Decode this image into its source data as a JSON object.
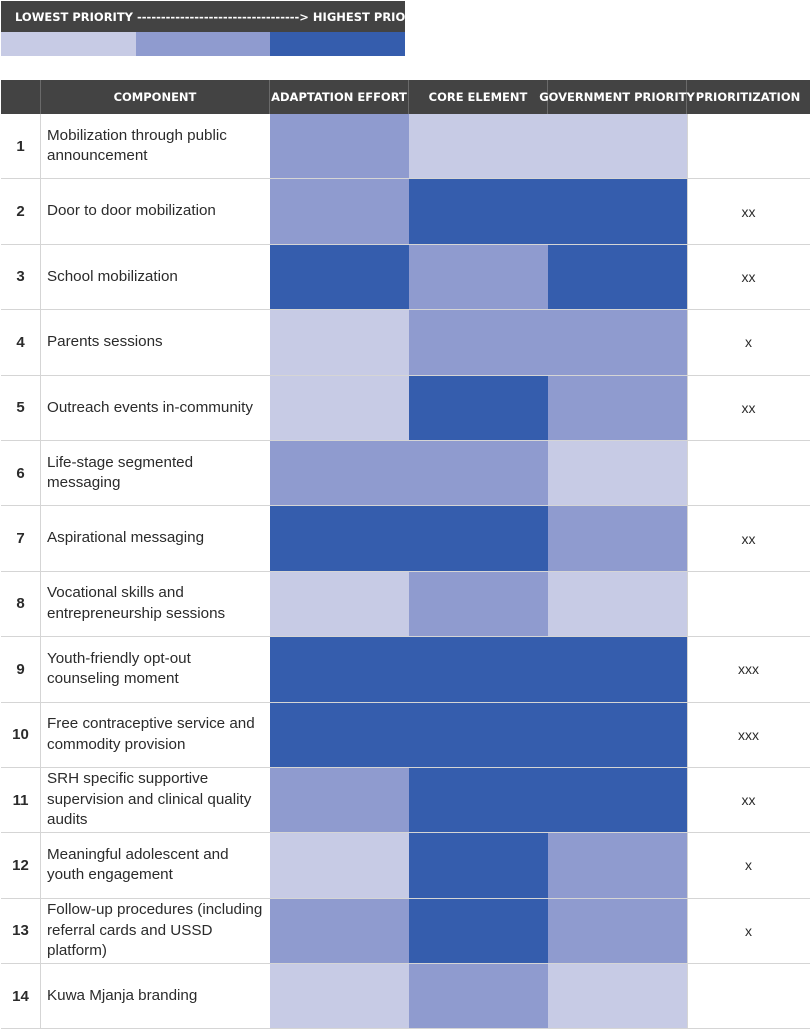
{
  "colors": {
    "low": "#c7cbe5",
    "medium": "#8f9bcf",
    "high": "#355dad",
    "header_bg": "#434343"
  },
  "legend": {
    "label": "LOWEST PRIORITY ----------------------------------> HIGHEST PRIORITY",
    "levels": [
      "low",
      "medium",
      "high"
    ]
  },
  "table": {
    "headers": {
      "component": "COMPONENT",
      "adaptation_effort": "ADAPTATION EFFORT",
      "core_element": "CORE ELEMENT",
      "government_priority": "GOVERNMENT PRIORITY",
      "prioritization": "PRIORITIZATION"
    },
    "rows": [
      {
        "num": "1",
        "component": "Mobilization through public announcement",
        "adaptation_effort": "medium",
        "core_element": "low",
        "government_priority": "low",
        "prioritization": ""
      },
      {
        "num": "2",
        "component": "Door to door mobilization",
        "adaptation_effort": "medium",
        "core_element": "high",
        "government_priority": "high",
        "prioritization": "xx"
      },
      {
        "num": "3",
        "component": "School mobilization",
        "adaptation_effort": "high",
        "core_element": "medium",
        "government_priority": "high",
        "prioritization": "xx"
      },
      {
        "num": "4",
        "component": "Parents sessions",
        "adaptation_effort": "low",
        "core_element": "medium",
        "government_priority": "medium",
        "prioritization": "x"
      },
      {
        "num": "5",
        "component": "Outreach events in-community",
        "adaptation_effort": "low",
        "core_element": "high",
        "government_priority": "medium",
        "prioritization": "xx"
      },
      {
        "num": "6",
        "component": "Life-stage segmented messaging",
        "adaptation_effort": "medium",
        "core_element": "medium",
        "government_priority": "low",
        "prioritization": ""
      },
      {
        "num": "7",
        "component": "Aspirational messaging",
        "adaptation_effort": "high",
        "core_element": "high",
        "government_priority": "medium",
        "prioritization": "xx"
      },
      {
        "num": "8",
        "component": "Vocational skills and entrepreneurship sessions",
        "adaptation_effort": "low",
        "core_element": "medium",
        "government_priority": "low",
        "prioritization": ""
      },
      {
        "num": "9",
        "component": "Youth-friendly opt-out counseling moment",
        "adaptation_effort": "high",
        "core_element": "high",
        "government_priority": "high",
        "prioritization": "xxx"
      },
      {
        "num": "10",
        "component": "Free contraceptive service and commodity provision",
        "adaptation_effort": "high",
        "core_element": "high",
        "government_priority": "high",
        "prioritization": "xxx"
      },
      {
        "num": "11",
        "component": "SRH specific supportive supervision and clinical quality audits",
        "adaptation_effort": "medium",
        "core_element": "high",
        "government_priority": "high",
        "prioritization": "xx"
      },
      {
        "num": "12",
        "component": "Meaningful adolescent and youth engagement",
        "adaptation_effort": "low",
        "core_element": "high",
        "government_priority": "medium",
        "prioritization": "x"
      },
      {
        "num": "13",
        "component": "Follow-up procedures (including referral cards and USSD platform)",
        "adaptation_effort": "medium",
        "core_element": "high",
        "government_priority": "medium",
        "prioritization": "x"
      },
      {
        "num": "14",
        "component": "Kuwa Mjanja branding",
        "adaptation_effort": "low",
        "core_element": "medium",
        "government_priority": "low",
        "prioritization": ""
      }
    ]
  }
}
